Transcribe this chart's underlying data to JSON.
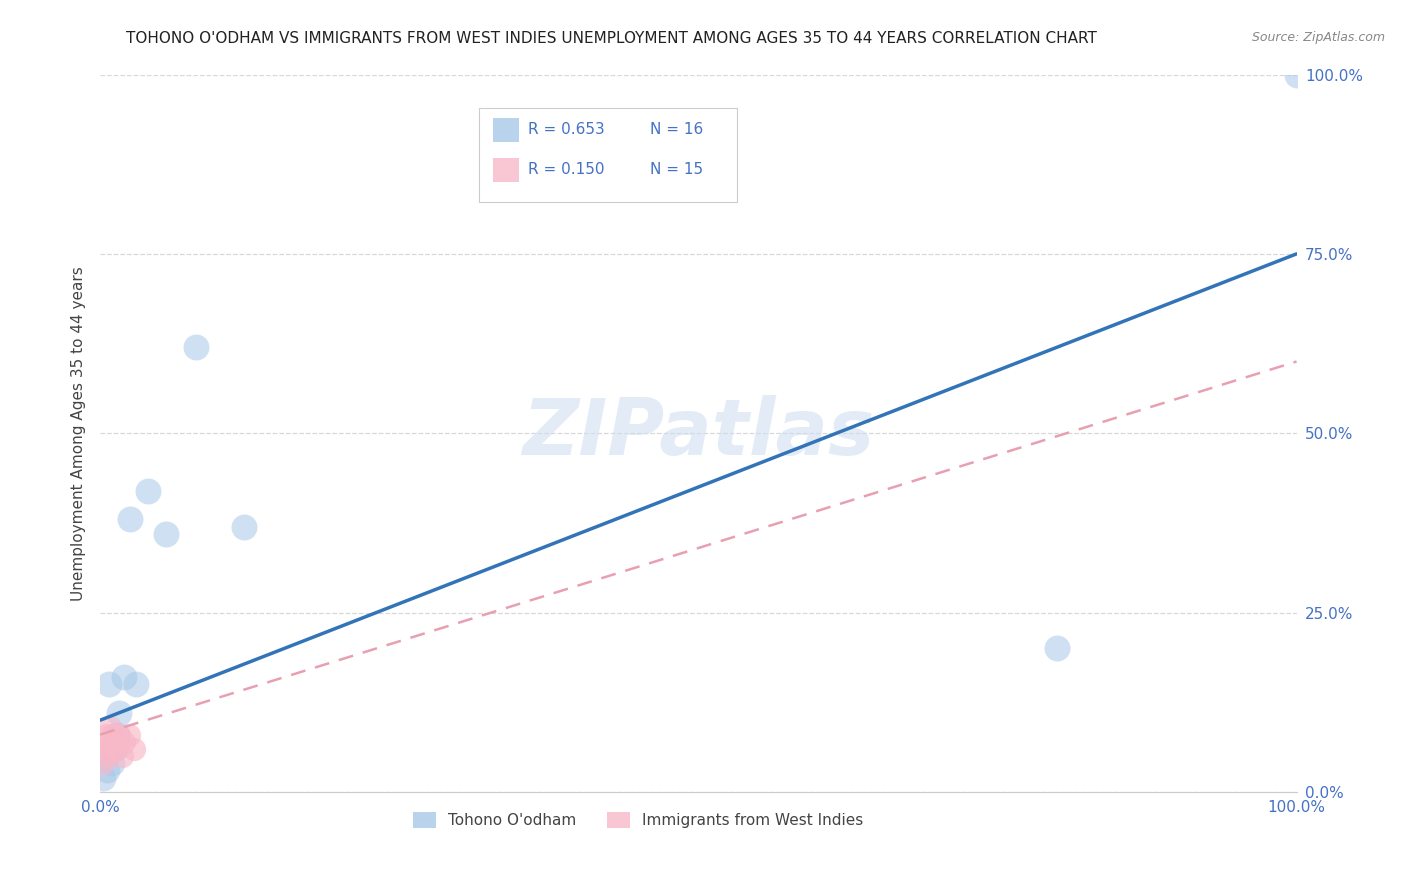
{
  "title": "TOHONO O'ODHAM VS IMMIGRANTS FROM WEST INDIES UNEMPLOYMENT AMONG AGES 35 TO 44 YEARS CORRELATION CHART",
  "source": "Source: ZipAtlas.com",
  "ylabel": "Unemployment Among Ages 35 to 44 years",
  "xlim": [
    0,
    1.0
  ],
  "ylim": [
    0,
    1.0
  ],
  "watermark": "ZIPatlas",
  "legend_bottom1": "Tohono O'odham",
  "legend_bottom2": "Immigrants from West Indies",
  "blue_color": "#a8c8e8",
  "pink_color": "#f8b8c8",
  "line_blue_color": "#3374b8",
  "line_pink_color": "#e8a0b0",
  "background_color": "#ffffff",
  "grid_color": "#d8d8d8",
  "tohono_x": [
    0.002,
    0.006,
    0.007,
    0.01,
    0.012,
    0.014,
    0.016,
    0.02,
    0.025,
    0.03,
    0.04,
    0.055,
    0.08,
    0.12,
    0.8,
    1.0
  ],
  "tohono_y": [
    0.02,
    0.03,
    0.15,
    0.04,
    0.06,
    0.08,
    0.11,
    0.16,
    0.38,
    0.15,
    0.42,
    0.36,
    0.62,
    0.37,
    0.2,
    1.0
  ],
  "westindies_x": [
    0.002,
    0.004,
    0.005,
    0.006,
    0.007,
    0.008,
    0.009,
    0.01,
    0.012,
    0.014,
    0.016,
    0.018,
    0.02,
    0.024,
    0.028
  ],
  "westindies_y": [
    0.04,
    0.06,
    0.08,
    0.05,
    0.07,
    0.09,
    0.06,
    0.08,
    0.07,
    0.06,
    0.08,
    0.05,
    0.07,
    0.08,
    0.06
  ],
  "blue_line_x0": 0.0,
  "blue_line_y0": 0.1,
  "blue_line_x1": 1.0,
  "blue_line_y1": 0.75,
  "pink_line_x0": 0.0,
  "pink_line_y0": 0.08,
  "pink_line_x1": 1.0,
  "pink_line_y1": 0.6,
  "R_blue": "0.653",
  "N_blue": "16",
  "R_pink": "0.150",
  "N_pink": "15",
  "tick_color": "#4472c4",
  "title_fontsize": 11,
  "label_fontsize": 11,
  "tick_fontsize": 11
}
